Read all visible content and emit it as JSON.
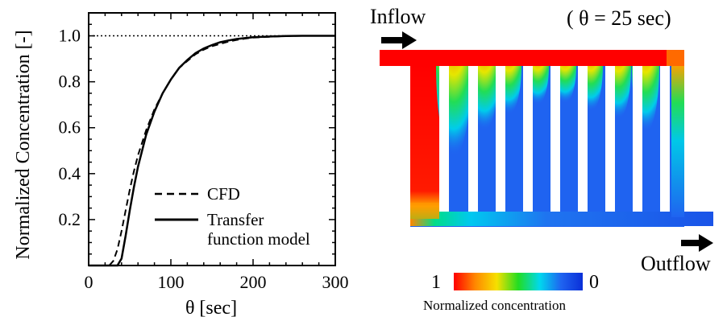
{
  "chart_data": {
    "type": "line",
    "xlabel": "θ  [sec]",
    "ylabel": "Normalized Concentration [-]",
    "xlim": [
      0,
      300
    ],
    "ylim": [
      0,
      1.1
    ],
    "x_ticks": [
      "0",
      "100",
      "200",
      "300"
    ],
    "y_ticks": [
      "0.2",
      "0.4",
      "0.6",
      "0.8",
      "1.0"
    ],
    "grid": false,
    "legend_position": "bottom-right",
    "reference_line": {
      "y": 1.0,
      "style": "dotted"
    },
    "series": [
      {
        "name": "CFD",
        "style": "dashed",
        "x": [
          0,
          25,
          30,
          35,
          40,
          45,
          50,
          55,
          60,
          70,
          80,
          90,
          100,
          110,
          120,
          130,
          140,
          150,
          160,
          170,
          180,
          190,
          200,
          220,
          240,
          260,
          280,
          300
        ],
        "y": [
          0,
          0,
          0.02,
          0.07,
          0.15,
          0.24,
          0.33,
          0.41,
          0.48,
          0.59,
          0.68,
          0.75,
          0.81,
          0.86,
          0.89,
          0.92,
          0.94,
          0.955,
          0.965,
          0.975,
          0.982,
          0.988,
          0.992,
          0.996,
          0.999,
          1.0,
          1.0,
          1.0
        ]
      },
      {
        "name": "Transfer function model",
        "style": "solid",
        "x": [
          0,
          35,
          40,
          45,
          50,
          55,
          60,
          70,
          80,
          90,
          100,
          110,
          120,
          130,
          140,
          150,
          160,
          170,
          180,
          190,
          200,
          220,
          240,
          260,
          280,
          300
        ],
        "y": [
          0,
          0,
          0.03,
          0.13,
          0.24,
          0.34,
          0.43,
          0.57,
          0.67,
          0.75,
          0.81,
          0.86,
          0.895,
          0.925,
          0.945,
          0.96,
          0.972,
          0.98,
          0.986,
          0.99,
          0.994,
          0.997,
          0.999,
          1.0,
          1.0,
          1.0
        ]
      }
    ]
  },
  "legend": {
    "cfd_label": "CFD",
    "tf_label_line1": "Transfer",
    "tf_label_line2": "function model"
  },
  "simulation": {
    "inflow_label": "Inflow",
    "outflow_label": "Outflow",
    "snapshot_label": "( θ = 25 sec)",
    "colorbar_min_label": "1",
    "colorbar_max_label": "0",
    "colorbar_title": "Normalized concentration",
    "colorbar_colors": [
      "#ff0000",
      "#ff8800",
      "#f6e000",
      "#22dd22",
      "#00d8ee",
      "#1f63f0",
      "#0a2fd8"
    ],
    "wall_color": "#ffffff"
  }
}
